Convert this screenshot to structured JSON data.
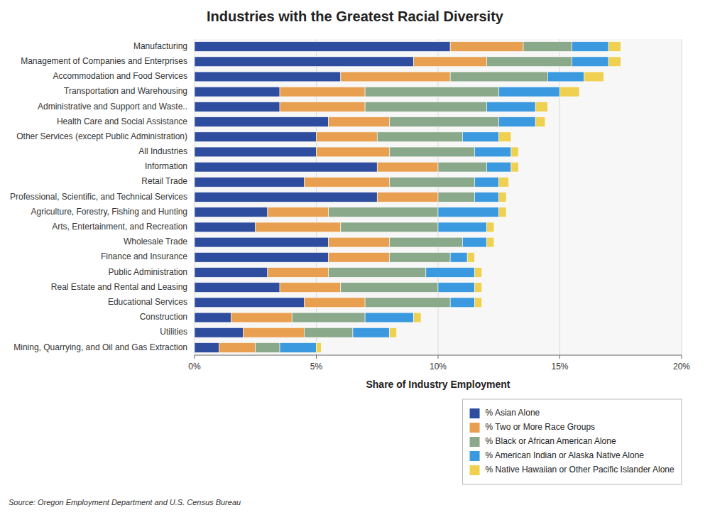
{
  "chart_data": {
    "type": "bar",
    "orientation": "horizontal",
    "stacked": true,
    "title": "Industries with the Greatest Racial Diversity",
    "x_label": "Share of Industry Employment",
    "categories": [
      "Manufacturing",
      "Management of Companies and Enterprises",
      "Accommodation and Food Services",
      "Transportation and Warehousing",
      "Administrative and Support and Waste..",
      "Health Care and Social Assistance",
      "Other Services (except Public Administration)",
      "All Industries",
      "Information",
      "Retail Trade",
      "Professional, Scientific, and Technical Services",
      "Agriculture, Forestry, Fishing and Hunting",
      "Arts, Entertainment, and Recreation",
      "Wholesale Trade",
      "Finance and Insurance",
      "Public Administration",
      "Real Estate and Rental and Leasing",
      "Educational Services",
      "Construction",
      "Utilities",
      "Mining, Quarrying, and Oil and Gas Extraction"
    ],
    "series": [
      {
        "name": "% Asian Alone",
        "color": "#2E4D9E",
        "values": [
          10.5,
          9.0,
          6.0,
          3.5,
          3.5,
          5.5,
          5.0,
          5.0,
          7.5,
          4.5,
          7.5,
          3.0,
          2.5,
          5.5,
          5.5,
          3.0,
          3.5,
          4.5,
          1.5,
          2.0,
          1.0
        ]
      },
      {
        "name": "% Two or More Race Groups",
        "color": "#E8A050",
        "values": [
          3.0,
          3.0,
          4.5,
          3.5,
          3.5,
          2.5,
          2.5,
          3.0,
          2.5,
          3.5,
          2.5,
          2.5,
          3.5,
          2.5,
          2.5,
          2.5,
          2.5,
          2.5,
          2.5,
          2.5,
          1.5
        ]
      },
      {
        "name": "% Black or African American Alone",
        "color": "#8AA88A",
        "values": [
          2.0,
          3.5,
          4.0,
          5.5,
          5.0,
          4.5,
          3.5,
          3.5,
          2.0,
          3.5,
          1.5,
          4.5,
          4.0,
          3.0,
          2.5,
          4.0,
          4.0,
          3.5,
          3.0,
          2.0,
          1.0
        ]
      },
      {
        "name": "% American Indian or Alaska Native Alone",
        "color": "#3B99E0",
        "values": [
          1.5,
          1.5,
          1.5,
          2.5,
          2.0,
          1.5,
          1.5,
          1.5,
          1.0,
          1.0,
          1.0,
          2.5,
          2.0,
          1.0,
          0.7,
          2.0,
          1.5,
          1.0,
          2.0,
          1.5,
          1.5
        ]
      },
      {
        "name": "% Native Hawaiian or Other Pacific Islander Alone",
        "color": "#F0D050",
        "values": [
          0.5,
          0.5,
          0.8,
          0.8,
          0.5,
          0.4,
          0.5,
          0.3,
          0.3,
          0.4,
          0.3,
          0.3,
          0.3,
          0.3,
          0.3,
          0.3,
          0.3,
          0.3,
          0.3,
          0.3,
          0.2
        ]
      }
    ],
    "xlim": [
      0,
      20
    ],
    "xticks": [
      {
        "value": 0,
        "label": "0%"
      },
      {
        "value": 5,
        "label": "5%"
      },
      {
        "value": 10,
        "label": "10%"
      },
      {
        "value": 15,
        "label": "15%"
      },
      {
        "value": 20,
        "label": "20%"
      }
    ],
    "grid": true,
    "legend": "bottom",
    "annotations": [
      "Source: Oregon Employment Department and U.S. Census Bureau"
    ]
  }
}
